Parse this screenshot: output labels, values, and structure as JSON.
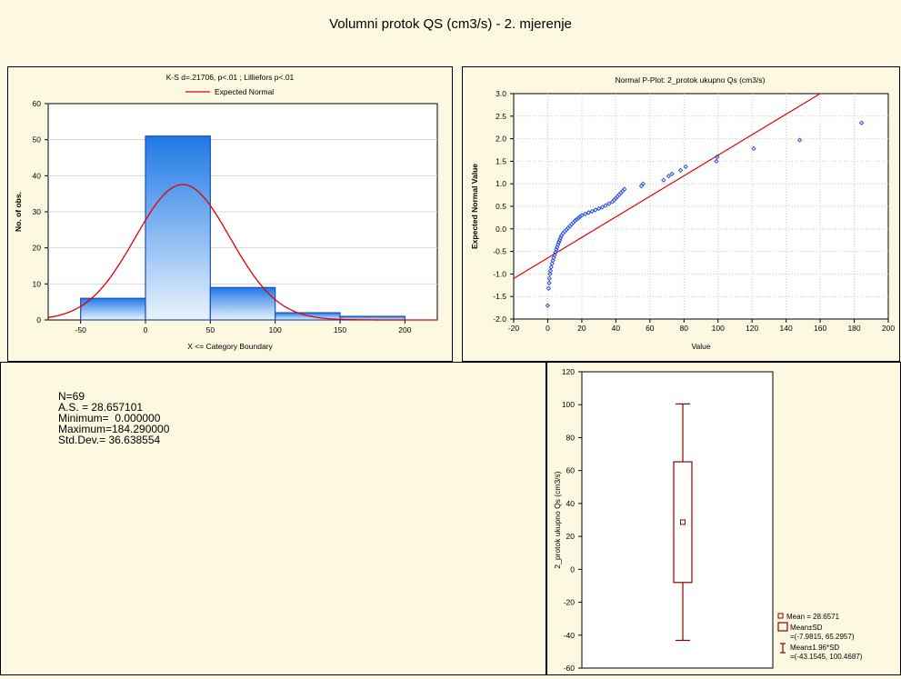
{
  "page": {
    "title": "Volumni protok QS (cm3/s) - 2. mjerenje"
  },
  "stats": {
    "n": "N=69",
    "mean": "A.S. = 28.657101",
    "min": "Minimum=  0.000000",
    "max": "Maximum=184.290000",
    "std": "Std.Dev.= 36.638554"
  },
  "colors": {
    "bar_fill_top": "#1e78e6",
    "bar_fill_bottom": "#e9f3fd",
    "bar_stroke": "#1a4fbf",
    "normal_curve": "#e00000",
    "points": "#1a3fe0",
    "box": "#8b0000"
  },
  "chart_data": [
    {
      "type": "bar",
      "title": "K-S d=.21706, p<.01 ; Lilliefors p<.01",
      "legend": [
        "Expected Normal"
      ],
      "xlabel": "X <= Category Boundary",
      "ylabel": "No. of obs.",
      "categories": [
        "-50 to 0",
        "0 to 50",
        "50 to 100",
        "100 to 150",
        "150 to 200"
      ],
      "bins": [
        [
          -50,
          0
        ],
        [
          0,
          50
        ],
        [
          50,
          100
        ],
        [
          100,
          150
        ],
        [
          150,
          200
        ]
      ],
      "values": [
        6,
        51,
        9,
        2,
        1
      ],
      "expected_normal": {
        "mean": 28.6571,
        "sd": 36.6386,
        "n": 69,
        "bin_width": 50
      },
      "xticks": [
        -50,
        0,
        50,
        100,
        150,
        200
      ],
      "yticks": [
        0,
        10,
        20,
        30,
        40,
        50,
        60
      ],
      "xlim": [
        -75,
        225
      ],
      "ylim": [
        0,
        60
      ],
      "grid": true
    },
    {
      "type": "scatter",
      "title": "Normal P-Plot: 2_protok ukupno Qs (cm3/s)",
      "xlabel": "Value",
      "ylabel": "Expected Normal Value",
      "xticks": [
        -20,
        0,
        20,
        40,
        60,
        80,
        100,
        120,
        140,
        160,
        180,
        200
      ],
      "yticks": [
        -2.0,
        -1.5,
        -1.0,
        -0.5,
        0.0,
        0.5,
        1.0,
        1.5,
        2.0,
        2.5,
        3.0
      ],
      "xlim": [
        -20,
        200
      ],
      "ylim": [
        -2.0,
        3.0
      ],
      "grid": true,
      "reference_line": {
        "x": [
          -20,
          160
        ],
        "y": [
          -1.1,
          3.0
        ]
      },
      "points": [
        [
          0,
          -1.7
        ],
        [
          0.5,
          -1.32
        ],
        [
          0.8,
          -1.2
        ],
        [
          1,
          -1.1
        ],
        [
          1.3,
          -1.0
        ],
        [
          1.6,
          -0.93
        ],
        [
          2,
          -0.85
        ],
        [
          2.5,
          -0.77
        ],
        [
          3,
          -0.7
        ],
        [
          3.5,
          -0.64
        ],
        [
          4,
          -0.58
        ],
        [
          4.5,
          -0.52
        ],
        [
          5,
          -0.46
        ],
        [
          5.5,
          -0.41
        ],
        [
          6,
          -0.35
        ],
        [
          6.5,
          -0.3
        ],
        [
          7,
          -0.25
        ],
        [
          7.5,
          -0.2
        ],
        [
          8,
          -0.15
        ],
        [
          9,
          -0.1
        ],
        [
          10,
          -0.06
        ],
        [
          11,
          -0.02
        ],
        [
          12,
          0.02
        ],
        [
          13,
          0.06
        ],
        [
          14,
          0.1
        ],
        [
          15,
          0.14
        ],
        [
          16,
          0.18
        ],
        [
          17,
          0.21
        ],
        [
          18,
          0.24
        ],
        [
          19,
          0.27
        ],
        [
          20,
          0.3
        ],
        [
          22,
          0.33
        ],
        [
          24,
          0.36
        ],
        [
          26,
          0.39
        ],
        [
          28,
          0.42
        ],
        [
          30,
          0.45
        ],
        [
          32,
          0.48
        ],
        [
          34,
          0.52
        ],
        [
          36,
          0.56
        ],
        [
          38,
          0.6
        ],
        [
          39,
          0.64
        ],
        [
          40,
          0.68
        ],
        [
          41,
          0.72
        ],
        [
          42,
          0.76
        ],
        [
          43,
          0.8
        ],
        [
          44,
          0.84
        ],
        [
          45,
          0.88
        ],
        [
          55,
          0.95
        ],
        [
          56,
          1.0
        ],
        [
          68,
          1.08
        ],
        [
          71,
          1.17
        ],
        [
          73,
          1.22
        ],
        [
          78,
          1.3
        ],
        [
          81,
          1.38
        ],
        [
          99,
          1.5
        ],
        [
          99.5,
          1.6
        ],
        [
          121,
          1.78
        ],
        [
          148,
          1.97
        ],
        [
          184.3,
          2.35
        ]
      ]
    },
    {
      "type": "box",
      "ylabel": "2_protok ukupno Qs (cm3/s)",
      "yticks": [
        -60,
        -40,
        -20,
        0,
        20,
        40,
        60,
        80,
        100,
        120
      ],
      "ylim": [
        -60,
        120
      ],
      "mean": 28.6571,
      "box": [
        -7.9815,
        65.2957
      ],
      "whiskers": [
        -43.1545,
        100.4687
      ],
      "legend": [
        "Mean = 28.6571",
        "Mean±SD",
        "=(-7.9815, 65.2957)",
        "Mean±1.96*SD",
        "=(-43.1545, 100.4687)"
      ]
    }
  ]
}
